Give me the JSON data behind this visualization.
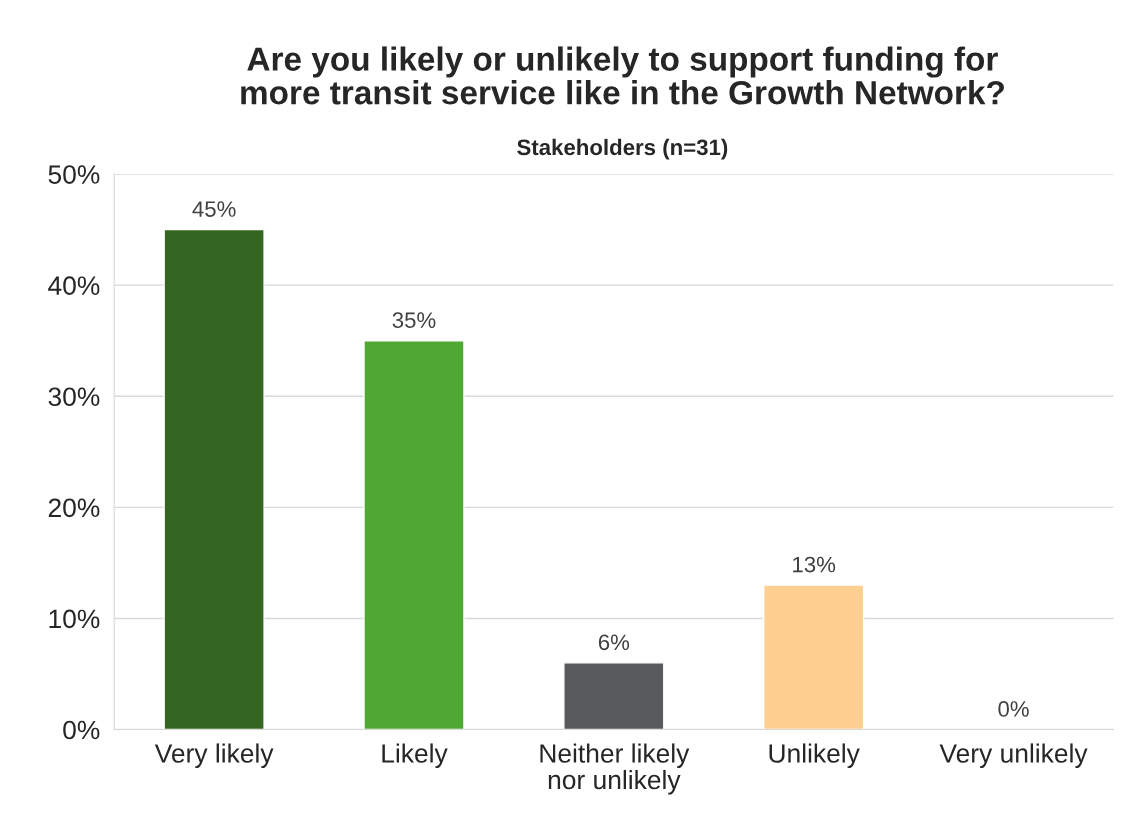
{
  "chart_data": {
    "type": "bar",
    "title": "Are you likely or unlikely to support funding for\nmore transit service like in the Growth Network?",
    "subtitle": "Stakeholders (n=31)",
    "categories": [
      "Very likely",
      "Likely",
      "Neither likely\nnor unlikely",
      "Unlikely",
      "Very unlikely"
    ],
    "values": [
      45,
      35,
      6,
      13,
      0
    ],
    "value_labels": [
      "45%",
      "35%",
      "6%",
      "13%",
      "0%"
    ],
    "colors": [
      "#336621",
      "#4ea832",
      "#58595b",
      "#fdd091",
      null
    ],
    "ylim": [
      0,
      50
    ],
    "yticks": [
      {
        "value": 0,
        "label": "0%"
      },
      {
        "value": 10,
        "label": "10%"
      },
      {
        "value": 20,
        "label": "20%"
      },
      {
        "value": 30,
        "label": "30%"
      },
      {
        "value": 40,
        "label": "40%"
      },
      {
        "value": 50,
        "label": "50%"
      }
    ],
    "grid": "y",
    "legend": false
  }
}
